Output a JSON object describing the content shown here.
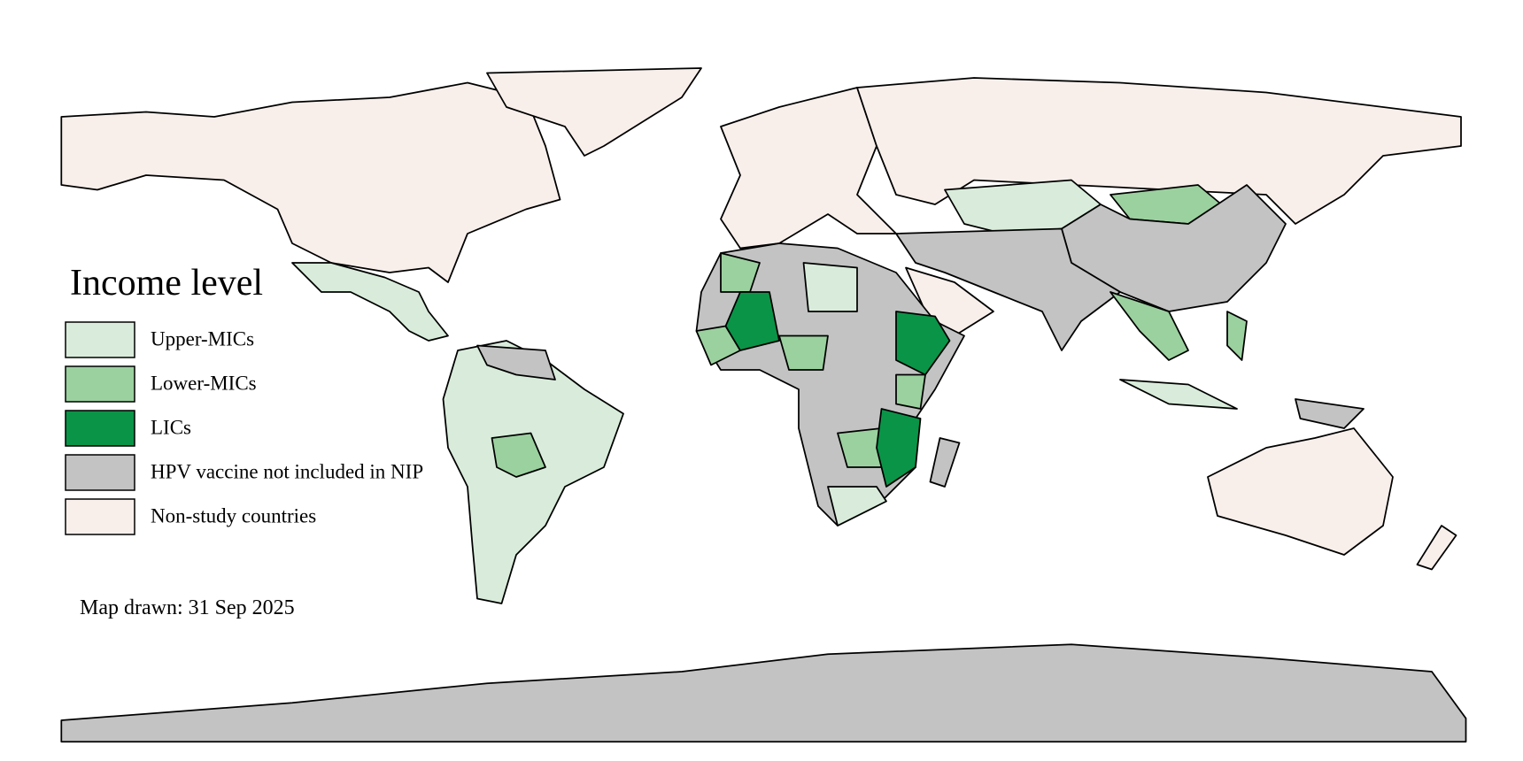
{
  "legend": {
    "title": "Income level",
    "items": [
      {
        "label": "Upper-MICs",
        "color": "#d9ecdb"
      },
      {
        "label": "Lower-MICs",
        "color": "#9bd19f"
      },
      {
        "label": "LICs",
        "color": "#0a9447"
      },
      {
        "label": "HPV vaccine not included in NIP",
        "color": "#c3c3c3"
      },
      {
        "label": "Non-study countries",
        "color": "#f8efeb"
      }
    ]
  },
  "note": "Map drawn: 31 Sep 2025"
}
